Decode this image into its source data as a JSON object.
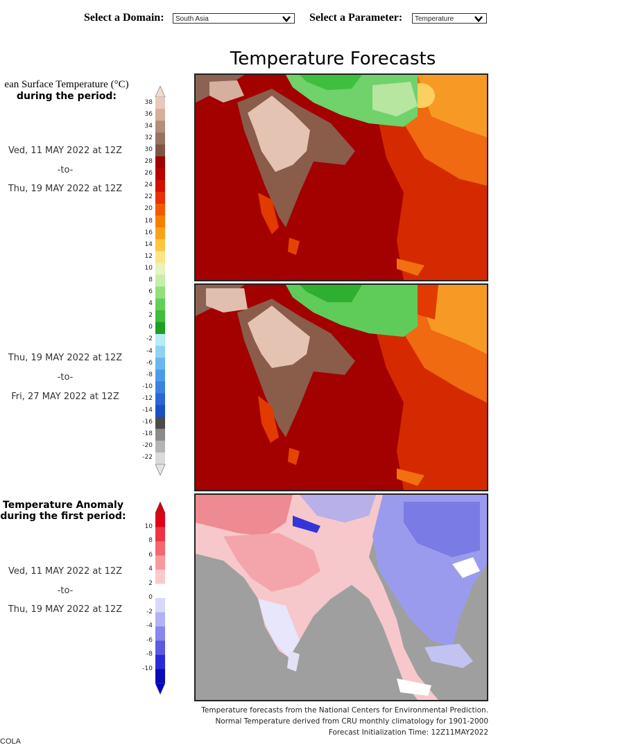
{
  "controls": {
    "domain_label": "Select a Domain:",
    "domain_value": "South Asia",
    "parameter_label": "Select a Parameter:",
    "parameter_value": "Temperature",
    "chevron_icon": "chevron-down-icon"
  },
  "page_title": "Temperature Forecasts",
  "temperature_panel": {
    "var_title_line1": "ean Surface Temperature (°C)",
    "var_title_line2": "during the period:",
    "period1": {
      "from": "Ved, 11 MAY 2022 at 12Z",
      "sep": "-to-",
      "to": "Thu, 19 MAY 2022 at 12Z"
    },
    "period2": {
      "from": "Thu, 19 MAY 2022 at 12Z",
      "sep": "-to-",
      "to": "Fri, 27 MAY 2022 at 12Z"
    },
    "colorbar_ticks": [
      "38",
      "36",
      "34",
      "32",
      "30",
      "28",
      "26",
      "24",
      "22",
      "20",
      "18",
      "16",
      "14",
      "12",
      "10",
      "8",
      "6",
      "4",
      "2",
      "0",
      "-2",
      "-4",
      "-6",
      "-8",
      "-10",
      "-12",
      "-14",
      "-16",
      "-18",
      "-20",
      "-22"
    ],
    "colorbar_colors": [
      "#e8c9bb",
      "#d8ad9c",
      "#b48d7c",
      "#9b7060",
      "#7d5646",
      "#a00000",
      "#b80000",
      "#d31000",
      "#e83000",
      "#f25a00",
      "#f77f00",
      "#fba21a",
      "#fcc640",
      "#fde585",
      "#e7f3c0",
      "#c5eeac",
      "#94e07c",
      "#64d05a",
      "#3ebe3a",
      "#1f9e1f",
      "#b6ecf7",
      "#8fd3f4",
      "#6bb6ef",
      "#4d9be8",
      "#3b82e0",
      "#2a66d6",
      "#1b4fc8",
      "#4a4a4a",
      "#8a8a8a",
      "#b4b4b4",
      "#dadada"
    ]
  },
  "anomaly_panel": {
    "title_line1": "Temperature Anomaly",
    "title_line2": "during the first period:",
    "period": {
      "from": "Ved, 11 MAY 2022 at 12Z",
      "sep": "-to-",
      "to": "Thu, 19 MAY 2022 at 12Z"
    },
    "colorbar_ticks": [
      "10",
      "8",
      "6",
      "4",
      "2",
      "0",
      "-2",
      "-4",
      "-6",
      "-8",
      "-10"
    ],
    "colorbar_colors": [
      "#e0001a",
      "#ee3344",
      "#f46670",
      "#f8999e",
      "#fbc9cb",
      "#ffffff",
      "#d8d8fa",
      "#b1b1f4",
      "#8787ec",
      "#5a5ae2",
      "#2a2ad8",
      "#0a0ab8"
    ]
  },
  "footer": {
    "line1": "Temperature forecasts from the National Centers for Environmental Prediction.",
    "line2": "Normal Temperature derived from CRU monthly climatology for 1901-2000",
    "line3": "Forecast Initialization Time: 12Z11MAY2022"
  },
  "credit": "COLA"
}
